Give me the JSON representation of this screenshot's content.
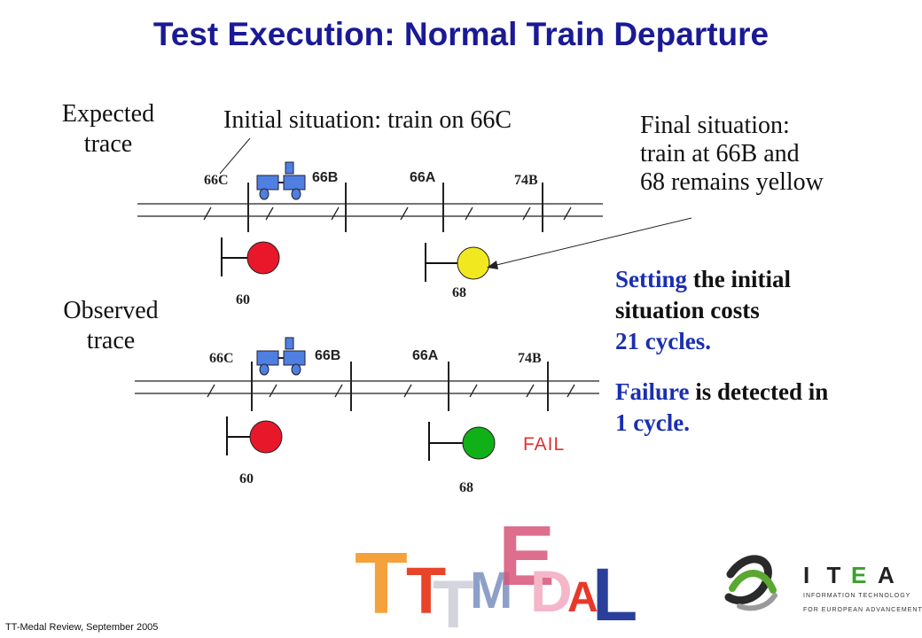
{
  "title": "Test Execution: Normal Train Departure",
  "expected": {
    "label_line1": "Expected",
    "label_line2": "trace",
    "initial": "Initial situation: train on 66C",
    "tracks": [
      "66C",
      "66B",
      "66A",
      "74B"
    ],
    "signals": [
      {
        "label": "60",
        "color": "#e8182a"
      },
      {
        "label": "68",
        "color": "#f2e820"
      }
    ]
  },
  "final_situation": {
    "line1": "Final situation:",
    "line2": "train at 66B and",
    "line3": "68 remains yellow"
  },
  "observed": {
    "label_line1": "Observed",
    "label_line2": "trace",
    "tracks": [
      "66C",
      "66B",
      "66A",
      "74B"
    ],
    "signals": [
      {
        "label": "60",
        "color": "#e8182a"
      },
      {
        "label": "68",
        "color": "#10b018"
      }
    ],
    "fail": "FAIL"
  },
  "summary": {
    "p1_blue": "Setting",
    "p1_rest": " the initial",
    "p1_line2": "situation costs",
    "p1_line3": "21 cycles.",
    "p2_blue": "Failure",
    "p2_rest": " is detected in",
    "p2_line2": "1 cycle."
  },
  "footer": "TT-Medal Review,  September 2005",
  "logos": {
    "ttmedal_letters": [
      "T",
      "T",
      "M",
      "E",
      "D",
      "A",
      "L"
    ],
    "itea_name": "I T E A",
    "itea_line1": "INFORMATION TECHNOLOGY",
    "itea_line2": "FOR EUROPEAN ADVANCEMENT"
  },
  "colors": {
    "title": "#1a1a96",
    "highlight": "#1a2fb0",
    "train": "#4f7fe0",
    "fail": "#e03030"
  }
}
